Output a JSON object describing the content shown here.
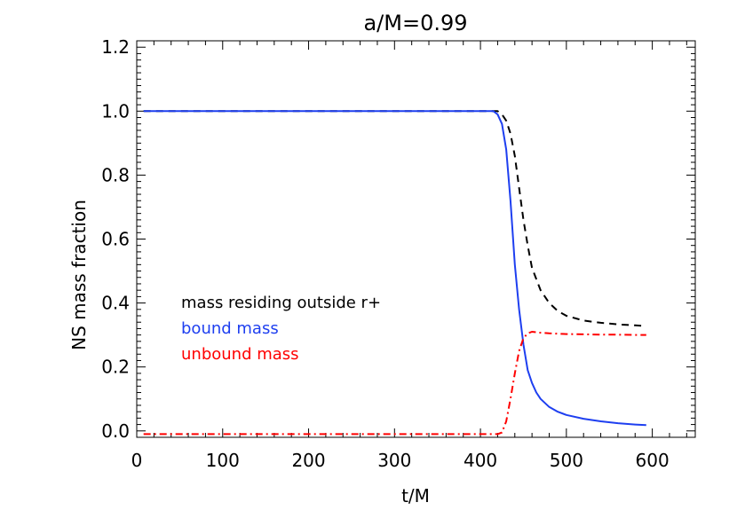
{
  "chart_data": {
    "type": "line",
    "title": "a/M=0.99",
    "xlabel": "t/M",
    "ylabel": "NS mass fraction",
    "xlim": [
      0,
      650
    ],
    "ylim": [
      -0.02,
      1.22
    ],
    "xticks": [
      0,
      100,
      200,
      300,
      400,
      500,
      600
    ],
    "xtick_labels": [
      "0",
      "100",
      "200",
      "300",
      "400",
      "500",
      "600"
    ],
    "yticks": [
      0.0,
      0.2,
      0.4,
      0.6,
      0.8,
      1.0,
      1.2
    ],
    "ytick_labels": [
      "0.0",
      "0.2",
      "0.4",
      "0.6",
      "0.8",
      "1.0",
      "1.2"
    ],
    "grid": false,
    "legend": "inside, left",
    "series": [
      {
        "name": "mass residing outside r+",
        "color": "#000000",
        "dash": "dashed",
        "x": [
          8,
          100,
          200,
          300,
          400,
          420,
          425,
          430,
          435,
          440,
          445,
          450,
          455,
          460,
          470,
          480,
          490,
          500,
          520,
          540,
          560,
          580,
          593
        ],
        "y": [
          1.0,
          1.0,
          1.0,
          1.0,
          1.0,
          1.0,
          0.99,
          0.97,
          0.93,
          0.86,
          0.76,
          0.66,
          0.58,
          0.51,
          0.44,
          0.4,
          0.375,
          0.36,
          0.345,
          0.338,
          0.333,
          0.33,
          0.328
        ]
      },
      {
        "name": "bound mass",
        "color": "#1e3ff0",
        "dash": "solid",
        "x": [
          8,
          100,
          200,
          300,
          400,
          415,
          420,
          425,
          430,
          435,
          440,
          445,
          450,
          455,
          460,
          465,
          470,
          480,
          490,
          500,
          520,
          540,
          560,
          580,
          593
        ],
        "y": [
          1.0,
          1.0,
          1.0,
          1.0,
          1.0,
          1.0,
          0.99,
          0.96,
          0.88,
          0.72,
          0.52,
          0.38,
          0.27,
          0.19,
          0.15,
          0.12,
          0.1,
          0.075,
          0.06,
          0.05,
          0.038,
          0.03,
          0.024,
          0.02,
          0.018
        ]
      },
      {
        "name": "unbound mass",
        "color": "#ff0000",
        "dash": "dashdot",
        "x": [
          8,
          100,
          200,
          300,
          400,
          420,
          425,
          430,
          435,
          440,
          445,
          450,
          455,
          460,
          470,
          480,
          500,
          520,
          540,
          560,
          580,
          593
        ],
        "y": [
          -0.01,
          -0.01,
          -0.01,
          -0.01,
          -0.01,
          -0.01,
          -0.005,
          0.03,
          0.1,
          0.18,
          0.25,
          0.29,
          0.305,
          0.31,
          0.307,
          0.305,
          0.303,
          0.302,
          0.301,
          0.301,
          0.3,
          0.3
        ]
      }
    ]
  }
}
